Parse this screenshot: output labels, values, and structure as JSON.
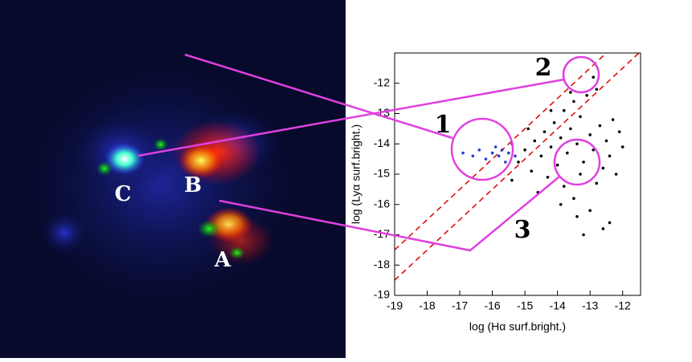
{
  "chart_data": {
    "type": "scatter",
    "xlabel": "log (Hα surf.bright.)",
    "ylabel": "log (Lyα surf.bright.)",
    "xlim": [
      -19,
      -11.45
    ],
    "ylim": [
      -19,
      -11
    ],
    "xticks": [
      -19,
      -18,
      -17,
      -16,
      -15,
      -14,
      -13,
      -12
    ],
    "yticks": [
      -19,
      -18,
      -17,
      -16,
      -15,
      -14,
      -13,
      -12
    ],
    "reference_lines": {
      "color": "#e00000",
      "slope": 1,
      "intercepts": [
        0.5,
        1.5
      ]
    },
    "annotations": [
      "1",
      "2",
      "3"
    ],
    "image_labels": [
      "C",
      "B",
      "A"
    ],
    "series": [
      {
        "color": "#000000",
        "x": [
          -15.2,
          -15.0,
          -14.8,
          -14.7,
          -14.5,
          -14.4,
          -14.3,
          -14.2,
          -14.1,
          -14.0,
          -13.9,
          -13.8,
          -13.8,
          -13.7,
          -13.6,
          -13.5,
          -13.5,
          -13.4,
          -13.3,
          -13.3,
          -13.2,
          -13.1,
          -13.0,
          -13.0,
          -12.9,
          -12.8,
          -12.8,
          -12.7,
          -12.6,
          -12.5,
          -12.4,
          -12.4,
          -12.3,
          -12.2,
          -12.0,
          -14.6,
          -13.9,
          -13.2,
          -14.9,
          -14.2,
          -13.6,
          -12.9,
          -12.6,
          -13.4,
          -15.4,
          -12.1
        ],
        "y": [
          -14.6,
          -14.2,
          -14.9,
          -13.9,
          -14.4,
          -13.6,
          -15.1,
          -14.1,
          -13.3,
          -14.7,
          -13.8,
          -15.4,
          -12.9,
          -14.3,
          -13.5,
          -15.8,
          -12.6,
          -14.0,
          -13.1,
          -15.0,
          -14.6,
          -12.4,
          -13.7,
          -16.2,
          -14.2,
          -12.2,
          -15.3,
          -13.4,
          -14.8,
          -13.9,
          -16.6,
          -14.4,
          -13.2,
          -15.0,
          -14.1,
          -15.6,
          -16.0,
          -17.0,
          -13.5,
          -12.9,
          -12.3,
          -11.8,
          -16.8,
          -16.4,
          -15.2,
          -13.6
        ]
      },
      {
        "color": "#1f3fd0",
        "x": [
          -16.6,
          -16.4,
          -16.2,
          -16.0,
          -15.9,
          -15.8,
          -15.7,
          -15.6,
          -15.5,
          -15.4,
          -16.9,
          -15.3
        ],
        "y": [
          -14.4,
          -14.2,
          -14.5,
          -14.3,
          -14.1,
          -14.4,
          -14.2,
          -14.6,
          -14.3,
          -14.0,
          -14.3,
          -14.4
        ]
      }
    ]
  }
}
